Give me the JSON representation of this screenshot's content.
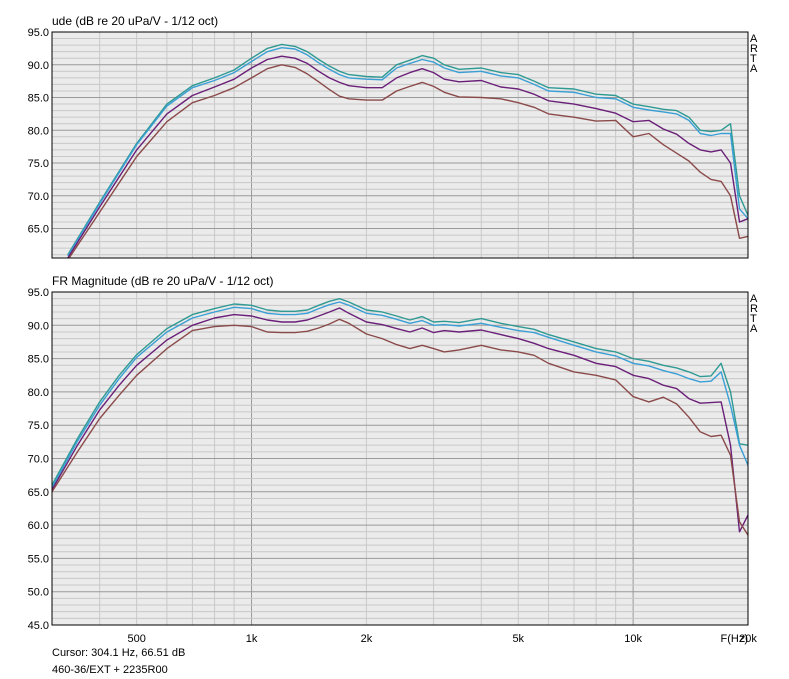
{
  "status": {
    "cursor": "Cursor: 304.1 Hz, 66.51 dB",
    "file": "460-36/EXT + 2235R00",
    "xunit": "F(Hz)"
  },
  "watermark": "ARTA",
  "colors": {
    "teal": "#2e9a93",
    "blue": "#3a9fd5",
    "purple": "#6a1f78",
    "brown": "#8b4a4a",
    "plot_bg": "#ebebeb",
    "grid": "#c8c8c8"
  },
  "chart_data": [
    {
      "type": "line",
      "title": "ude (dB re 20 uPa/V - 1/12 oct)",
      "xscale": "log",
      "xlim": [
        300,
        20000
      ],
      "ylim": [
        60.5,
        95
      ],
      "yticks": [
        "95.0",
        "90.0",
        "85.0",
        "80.0",
        "75.0",
        "70.0",
        "65.0"
      ],
      "ytick_values": [
        95,
        90,
        85,
        80,
        75,
        70,
        65
      ],
      "grid": true,
      "series": [
        {
          "color": "#2e9a93",
          "x": [
            330,
            400,
            500,
            600,
            700,
            800,
            900,
            1000,
            1100,
            1200,
            1300,
            1400,
            1500,
            1600,
            1700,
            1800,
            2000,
            2200,
            2400,
            2600,
            2800,
            3000,
            3200,
            3500,
            4000,
            4500,
            5000,
            5500,
            6000,
            7000,
            8000,
            9000,
            10000,
            11000,
            12000,
            13000,
            14000,
            15000,
            16000,
            17000,
            18000,
            19000,
            20000
          ],
          "y": [
            61,
            69,
            78,
            84,
            86.8,
            88,
            89.2,
            91,
            92.5,
            93.1,
            92.8,
            92,
            90.8,
            89.8,
            89,
            88.5,
            88.2,
            88.1,
            90,
            90.7,
            91.4,
            91,
            90,
            89.3,
            89.5,
            88.8,
            88.5,
            87.5,
            86.5,
            86.3,
            85.5,
            85.3,
            84,
            83.6,
            83.2,
            83,
            82,
            80,
            79.8,
            80,
            81,
            70,
            67
          ]
        },
        {
          "color": "#3a9fd5",
          "x": [
            330,
            400,
            500,
            600,
            700,
            800,
            900,
            1000,
            1100,
            1200,
            1300,
            1400,
            1500,
            1600,
            1700,
            1800,
            2000,
            2200,
            2400,
            2600,
            2800,
            3000,
            3200,
            3500,
            4000,
            4500,
            5000,
            5500,
            6000,
            7000,
            8000,
            9000,
            10000,
            11000,
            12000,
            13000,
            14000,
            15000,
            16000,
            17000,
            18000,
            19000,
            20000
          ],
          "y": [
            60.8,
            68.8,
            77.8,
            83.7,
            86.5,
            87.6,
            88.8,
            90.5,
            92,
            92.6,
            92.4,
            91.5,
            90.3,
            89.3,
            88.5,
            88,
            87.8,
            87.7,
            89.5,
            90.2,
            90.8,
            90.4,
            89.5,
            88.8,
            89,
            88.3,
            88,
            87,
            86,
            85.8,
            85,
            84.8,
            83.5,
            83.1,
            82.8,
            82.5,
            81.5,
            79.5,
            79.2,
            79.5,
            79.5,
            68,
            66.5
          ]
        },
        {
          "color": "#6a1f78",
          "x": [
            330,
            400,
            500,
            600,
            700,
            800,
            900,
            1000,
            1100,
            1200,
            1300,
            1400,
            1500,
            1600,
            1700,
            1800,
            2000,
            2200,
            2400,
            2600,
            2800,
            3000,
            3200,
            3500,
            4000,
            4500,
            5000,
            5500,
            6000,
            7000,
            8000,
            9000,
            10000,
            11000,
            12000,
            13000,
            14000,
            15000,
            16000,
            17000,
            18000,
            19000,
            20000
          ],
          "y": [
            60.5,
            68.3,
            77,
            82.5,
            85.3,
            86.6,
            87.8,
            89.5,
            90.8,
            91.3,
            91,
            90.2,
            89,
            88,
            87.3,
            86.8,
            86.5,
            86.5,
            88,
            88.8,
            89.4,
            88.8,
            87.8,
            87.4,
            87.6,
            86.6,
            86.3,
            85.5,
            84.5,
            84,
            83.3,
            82.6,
            81.3,
            81.5,
            80.2,
            79.4,
            78,
            77,
            76.7,
            77,
            75,
            66,
            66.5
          ]
        },
        {
          "color": "#8b4a4a",
          "x": [
            330,
            400,
            500,
            600,
            700,
            800,
            900,
            1000,
            1100,
            1200,
            1300,
            1400,
            1500,
            1600,
            1700,
            1800,
            2000,
            2200,
            2400,
            2600,
            2800,
            3000,
            3200,
            3500,
            4000,
            4500,
            5000,
            5500,
            6000,
            7000,
            8000,
            9000,
            10000,
            11000,
            12000,
            13000,
            14000,
            15000,
            16000,
            17000,
            18000,
            19000,
            20000
          ],
          "y": [
            60.2,
            67.5,
            76,
            81.3,
            84.2,
            85.3,
            86.5,
            88,
            89.4,
            90,
            89.6,
            88.6,
            87.4,
            86.2,
            85.2,
            84.8,
            84.6,
            84.6,
            86,
            86.7,
            87.3,
            86.7,
            85.8,
            85.1,
            85,
            84.8,
            84.2,
            83.5,
            82.5,
            82,
            81.4,
            81.5,
            79,
            79.5,
            77.8,
            76.5,
            75.3,
            73.6,
            72.5,
            72.2,
            70,
            63.5,
            63.8
          ]
        }
      ]
    },
    {
      "type": "line",
      "title": "FR Magnitude (dB re 20 uPa/V - 1/12 oct)",
      "xscale": "log",
      "xlim": [
        300,
        20000
      ],
      "ylim": [
        45,
        95
      ],
      "yticks": [
        "95.0",
        "90.0",
        "85.0",
        "80.0",
        "75.0",
        "70.0",
        "65.0",
        "60.0",
        "55.0",
        "50.0",
        "45.0"
      ],
      "ytick_values": [
        95,
        90,
        85,
        80,
        75,
        70,
        65,
        60,
        55,
        50,
        45
      ],
      "xticks": [
        "500",
        "1k",
        "2k",
        "5k",
        "10k",
        "20k"
      ],
      "xtick_values": [
        500,
        1000,
        2000,
        5000,
        10000,
        20000
      ],
      "grid": true,
      "series": [
        {
          "color": "#2e9a93",
          "x": [
            300,
            350,
            400,
            450,
            500,
            600,
            700,
            800,
            900,
            1000,
            1100,
            1200,
            1300,
            1400,
            1500,
            1600,
            1700,
            1800,
            2000,
            2200,
            2400,
            2600,
            2800,
            3000,
            3200,
            3500,
            4000,
            4500,
            5000,
            5500,
            6000,
            7000,
            8000,
            9000,
            10000,
            11000,
            12000,
            13000,
            14000,
            15000,
            16000,
            17000,
            18000,
            19000,
            20000
          ],
          "y": [
            66,
            73,
            78.5,
            82.5,
            85.6,
            89.5,
            91.6,
            92.5,
            93.2,
            93,
            92.3,
            92.1,
            92.1,
            92.3,
            93,
            93.6,
            94,
            93.5,
            92.3,
            92,
            91.4,
            90.8,
            91.3,
            90.5,
            90.6,
            90.4,
            91,
            90.3,
            89.8,
            89.4,
            88.6,
            87.5,
            86.5,
            86,
            85,
            84.6,
            84,
            83.6,
            83,
            82.3,
            82.4,
            84.3,
            80,
            72.2,
            72
          ]
        },
        {
          "color": "#3a9fd5",
          "x": [
            300,
            350,
            400,
            450,
            500,
            600,
            700,
            800,
            900,
            1000,
            1100,
            1200,
            1300,
            1400,
            1500,
            1600,
            1700,
            1800,
            2000,
            2200,
            2400,
            2600,
            2800,
            3000,
            3200,
            3500,
            4000,
            4500,
            5000,
            5500,
            6000,
            7000,
            8000,
            9000,
            10000,
            11000,
            12000,
            13000,
            14000,
            15000,
            16000,
            17000,
            18000,
            19000,
            20000
          ],
          "y": [
            65.6,
            72.6,
            78,
            82,
            85.2,
            89,
            91.1,
            92,
            92.7,
            92.5,
            91.8,
            91.6,
            91.6,
            91.8,
            92.5,
            93.1,
            93.5,
            93,
            91.8,
            91.5,
            90.9,
            90.3,
            90.7,
            90,
            90.1,
            89.9,
            90.3,
            89.7,
            89.2,
            88.9,
            88.2,
            87,
            86,
            85.4,
            84.3,
            83.9,
            83.2,
            82.7,
            82,
            81.5,
            81.6,
            83,
            78,
            72,
            69
          ]
        },
        {
          "color": "#6a1f78",
          "x": [
            300,
            350,
            400,
            450,
            500,
            600,
            700,
            800,
            900,
            1000,
            1100,
            1200,
            1300,
            1400,
            1500,
            1600,
            1700,
            1800,
            2000,
            2200,
            2400,
            2600,
            2800,
            3000,
            3200,
            3500,
            4000,
            4500,
            5000,
            5500,
            6000,
            7000,
            8000,
            9000,
            10000,
            11000,
            12000,
            13000,
            14000,
            15000,
            16000,
            17000,
            18000,
            19000,
            20000
          ],
          "y": [
            65.3,
            72,
            77.3,
            81,
            84,
            87.8,
            90,
            91.1,
            91.6,
            91.4,
            90.8,
            90.5,
            90.5,
            90.8,
            91.4,
            92,
            92.6,
            91.8,
            90.5,
            90.1,
            89.5,
            89,
            89.6,
            88.9,
            89.2,
            89,
            89.3,
            88.6,
            88,
            87.3,
            86.5,
            85.5,
            84.3,
            83.8,
            82.5,
            82,
            81,
            80.5,
            79,
            78.3,
            78.4,
            78.5,
            72,
            59,
            61.5
          ]
        },
        {
          "color": "#8b4a4a",
          "x": [
            300,
            350,
            400,
            450,
            500,
            600,
            700,
            800,
            900,
            1000,
            1100,
            1200,
            1300,
            1400,
            1500,
            1600,
            1700,
            1800,
            2000,
            2200,
            2400,
            2600,
            2800,
            3000,
            3200,
            3500,
            4000,
            4500,
            5000,
            5500,
            6000,
            7000,
            8000,
            9000,
            10000,
            11000,
            12000,
            13000,
            14000,
            15000,
            16000,
            17000,
            18000,
            19000,
            20000
          ],
          "y": [
            65,
            71,
            76,
            79.5,
            82.5,
            86.5,
            89.2,
            89.8,
            90,
            89.8,
            89,
            88.9,
            88.9,
            89.1,
            89.6,
            90.2,
            90.9,
            90.3,
            88.7,
            88,
            87.1,
            86.5,
            87,
            86.5,
            86,
            86.3,
            87,
            86.3,
            86,
            85.5,
            84.3,
            83,
            82.5,
            81.8,
            79.3,
            78.5,
            79.2,
            78.2,
            76.2,
            74,
            73.3,
            73.5,
            70.5,
            60.5,
            58.5
          ]
        }
      ]
    }
  ]
}
